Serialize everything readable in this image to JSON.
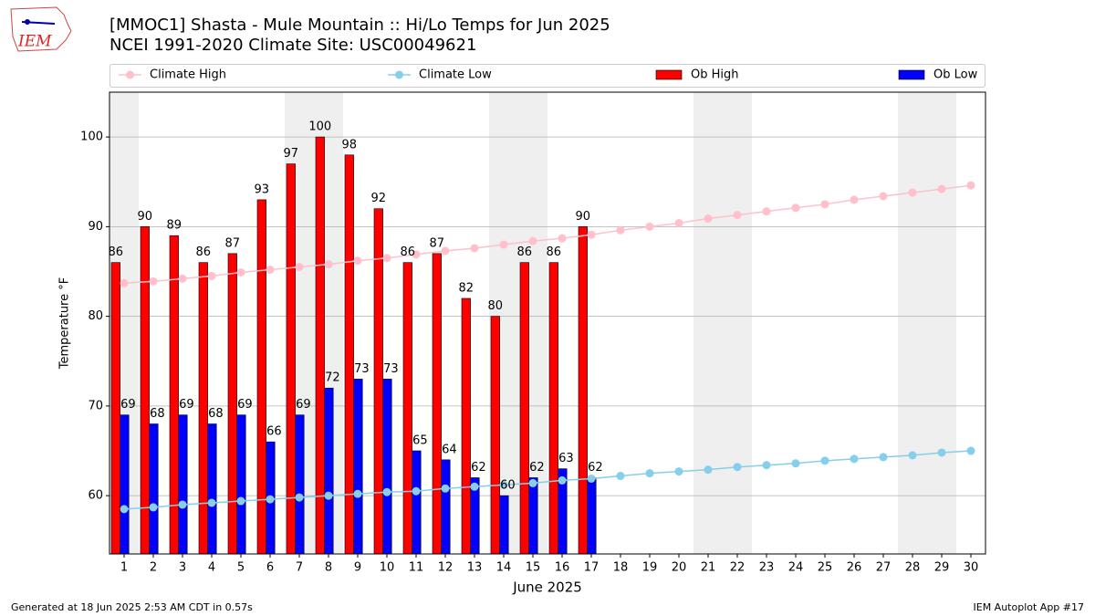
{
  "chart_data": {
    "type": "bar",
    "title": "[MMOC1] Shasta - Mule Mountain :: Hi/Lo Temps for Jun 2025",
    "subtitle": "NCEI 1991-2020 Climate Site: USC00049621",
    "x_label": "June 2025",
    "y_label": "Temperature °F",
    "footer_left": "Generated at 18 Jun 2025 2:53 AM CDT in 0.57s",
    "footer_right": "IEM Autoplot App #17",
    "logo_text": "IEM",
    "categories": [
      "1",
      "2",
      "3",
      "4",
      "5",
      "6",
      "7",
      "8",
      "9",
      "10",
      "11",
      "12",
      "13",
      "14",
      "15",
      "16",
      "17",
      "18",
      "19",
      "20",
      "21",
      "22",
      "23",
      "24",
      "25",
      "26",
      "27",
      "28",
      "29",
      "30"
    ],
    "highlight_days": [
      "1",
      "7",
      "8",
      "14",
      "15",
      "21",
      "22",
      "28",
      "29"
    ],
    "highlight_color": "#efefef",
    "ylim": [
      53.5,
      105
    ],
    "yticks": [
      60,
      70,
      80,
      90,
      100
    ],
    "grid": true,
    "legend": "top",
    "series": [
      {
        "name": "Climate High",
        "type": "line",
        "color": "#ffc0cb",
        "values": [
          83.7,
          83.9,
          84.2,
          84.5,
          84.9,
          85.2,
          85.5,
          85.8,
          86.2,
          86.5,
          86.9,
          87.3,
          87.6,
          88.0,
          88.4,
          88.7,
          89.1,
          89.6,
          90.0,
          90.4,
          90.9,
          91.3,
          91.7,
          92.1,
          92.5,
          93.0,
          93.4,
          93.8,
          94.2,
          94.6
        ]
      },
      {
        "name": "Climate Low",
        "type": "line",
        "color": "#87ceeb",
        "values": [
          58.5,
          58.7,
          59.0,
          59.2,
          59.4,
          59.6,
          59.8,
          60.0,
          60.2,
          60.4,
          60.5,
          60.8,
          61.0,
          61.2,
          61.4,
          61.7,
          61.9,
          62.2,
          62.5,
          62.7,
          62.9,
          63.2,
          63.4,
          63.6,
          63.9,
          64.1,
          64.3,
          64.5,
          64.8,
          65.0
        ]
      },
      {
        "name": "Ob High",
        "type": "bar",
        "color": "#ff0000",
        "values": [
          86,
          90,
          89,
          86,
          87,
          93,
          97,
          100,
          98,
          92,
          86,
          87,
          82,
          80,
          86,
          86,
          90,
          null,
          null,
          null,
          null,
          null,
          null,
          null,
          null,
          null,
          null,
          null,
          null,
          null
        ]
      },
      {
        "name": "Ob Low",
        "type": "bar",
        "color": "#0000ff",
        "values": [
          69,
          68,
          69,
          68,
          69,
          66,
          69,
          72,
          73,
          73,
          65,
          64,
          62,
          60,
          62,
          63,
          62,
          null,
          null,
          null,
          null,
          null,
          null,
          null,
          null,
          null,
          null,
          null,
          null,
          null
        ]
      }
    ]
  }
}
